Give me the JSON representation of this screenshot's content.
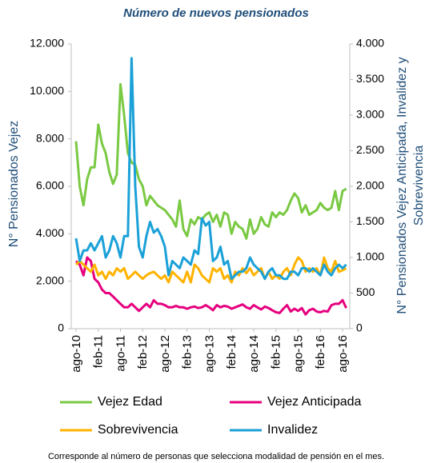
{
  "chart_data": {
    "type": "line",
    "title": "Número de nuevos pensionados",
    "ylabel": "N° Pensionados Vejez",
    "y2label": [
      "N° Pensionados Vejez Anticipada, Invalidez y",
      "Sobrevivencia"
    ],
    "note": "Corresponde al número de personas que selecciona modalidad de pensión en el mes.",
    "categories": [
      "ago-10",
      null,
      null,
      null,
      null,
      null,
      "feb-11",
      null,
      null,
      null,
      null,
      null,
      "ago-11",
      null,
      null,
      null,
      null,
      null,
      "feb-12",
      null,
      null,
      null,
      null,
      null,
      "ago-12",
      null,
      null,
      null,
      null,
      null,
      "feb-13",
      null,
      null,
      null,
      null,
      null,
      "ago-13",
      null,
      null,
      null,
      null,
      null,
      "feb-14",
      null,
      null,
      null,
      null,
      null,
      "ago-14",
      null,
      null,
      null,
      null,
      null,
      "feb-15",
      null,
      null,
      null,
      null,
      null,
      "ago-15",
      null,
      null,
      null,
      null,
      null,
      "feb-16",
      null,
      null,
      null,
      null,
      null,
      "ago-16",
      null
    ],
    "ylim": [
      0,
      12000
    ],
    "yticks": [
      0,
      {
        "value": 2000,
        "label": "2.000"
      },
      {
        "value": 4000,
        "label": "4.000"
      },
      {
        "value": 6000,
        "label": "6.000"
      },
      {
        "value": 8000,
        "label": "8.000"
      },
      {
        "value": 10000,
        "label": "10.000"
      },
      {
        "value": 12000,
        "label": "12.000"
      }
    ],
    "y2lim": [
      0,
      4000
    ],
    "y2ticks": [
      0,
      500,
      {
        "value": 1000,
        "label": "1.000"
      },
      {
        "value": 1500,
        "label": "1.500"
      },
      {
        "value": 2000,
        "label": "2.000"
      },
      {
        "value": 2500,
        "label": "2.500"
      },
      {
        "value": 3000,
        "label": "3.000"
      },
      {
        "value": 3500,
        "label": "3.500"
      },
      {
        "value": 4000,
        "label": "4.000"
      }
    ],
    "series": [
      {
        "name": "Vejez Edad",
        "color": "#7ac943",
        "axis": "y",
        "values": [
          7900,
          6000,
          5200,
          6300,
          6800,
          6800,
          8600,
          7800,
          7400,
          6600,
          6100,
          6500,
          10300,
          9000,
          7400,
          7000,
          6900,
          6300,
          6000,
          5200,
          5600,
          5400,
          5200,
          5100,
          5000,
          4800,
          4600,
          4300,
          5400,
          4200,
          3900,
          4600,
          4400,
          4700,
          4600,
          4800,
          4900,
          4500,
          4800,
          4300,
          4900,
          4800,
          4000,
          4500,
          4300,
          4200,
          3800,
          4600,
          4000,
          4200,
          4700,
          4400,
          4300,
          4900,
          4700,
          4900,
          4800,
          5000,
          5400,
          5700,
          5500,
          4900,
          5200,
          4800,
          4900,
          5000,
          5300,
          5100,
          5000,
          5100,
          5800,
          5000,
          5800,
          5900
        ]
      },
      {
        "name": "Vejez Anticipada",
        "color": "#e6007e",
        "axis": "y2",
        "values": [
          950,
          900,
          750,
          1000,
          950,
          700,
          650,
          550,
          500,
          500,
          450,
          400,
          350,
          300,
          300,
          350,
          300,
          250,
          300,
          350,
          300,
          400,
          350,
          350,
          330,
          300,
          300,
          320,
          300,
          300,
          280,
          300,
          310,
          290,
          300,
          330,
          300,
          260,
          330,
          300,
          320,
          310,
          280,
          300,
          320,
          340,
          300,
          280,
          330,
          300,
          270,
          310,
          290,
          260,
          230,
          220,
          280,
          330,
          240,
          280,
          250,
          290,
          200,
          260,
          280,
          240,
          230,
          250,
          240,
          330,
          350,
          350,
          400,
          290
        ]
      },
      {
        "name": "Sobrevivencia",
        "color": "#ffb300",
        "axis": "y2",
        "values": [
          900,
          950,
          900,
          850,
          800,
          900,
          750,
          800,
          700,
          800,
          750,
          850,
          800,
          850,
          700,
          750,
          800,
          750,
          700,
          750,
          780,
          800,
          750,
          700,
          750,
          650,
          800,
          750,
          700,
          650,
          800,
          650,
          900,
          850,
          750,
          700,
          650,
          850,
          800,
          850,
          700,
          750,
          650,
          800,
          750,
          850,
          780,
          850,
          750,
          800,
          850,
          700,
          800,
          700,
          750,
          700,
          800,
          850,
          750,
          900,
          1000,
          950,
          800,
          850,
          800,
          850,
          750,
          1000,
          850,
          800,
          950,
          800,
          820,
          850
        ]
      },
      {
        "name": "Invalidez",
        "color": "#1ba1d8",
        "axis": "y2",
        "values": [
          1270,
          950,
          1100,
          1100,
          1200,
          1100,
          1200,
          1300,
          1000,
          1100,
          1300,
          1200,
          1000,
          1300,
          1300,
          3800,
          2000,
          1150,
          1000,
          1300,
          1500,
          1350,
          1400,
          1300,
          1150,
          750,
          950,
          900,
          850,
          1000,
          950,
          900,
          1100,
          1050,
          1550,
          1450,
          1500,
          950,
          1000,
          1150,
          900,
          950,
          700,
          750,
          800,
          800,
          850,
          1000,
          900,
          850,
          800,
          700,
          800,
          850,
          750,
          750,
          700,
          700,
          800,
          800,
          750,
          850,
          850,
          800,
          850,
          800,
          750,
          900,
          800,
          750,
          850,
          900,
          850,
          900
        ]
      }
    ]
  }
}
